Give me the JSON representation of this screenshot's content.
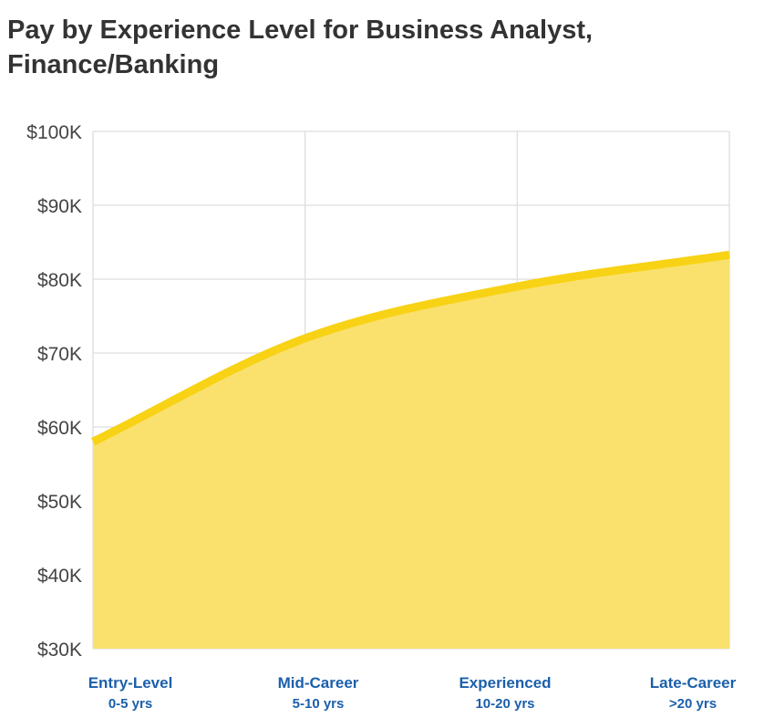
{
  "chart_data": {
    "type": "area",
    "title": "Pay by Experience Level for Business Analyst, Finance/Banking",
    "categories": [
      "Entry-Level",
      "Mid-Career",
      "Experienced",
      "Late-Career"
    ],
    "category_sublabels": [
      "0-5 yrs",
      "5-10 yrs",
      "10-20 yrs",
      ">20 yrs"
    ],
    "series": [
      {
        "values": [
          58000,
          72000,
          79000,
          83300
        ]
      }
    ],
    "ylim": [
      30000,
      100000
    ],
    "yticks": [
      "$30K",
      "$40K",
      "$50K",
      "$60K",
      "$70K",
      "$80K",
      "$90K",
      "$100K"
    ],
    "ytick_values": [
      30000,
      40000,
      50000,
      60000,
      70000,
      80000,
      90000,
      100000
    ],
    "grid": true,
    "colors": {
      "line": "#f8d215",
      "fill": "#fae16e",
      "grid": "#dddddd",
      "axis_label": "#1b5fab"
    }
  }
}
